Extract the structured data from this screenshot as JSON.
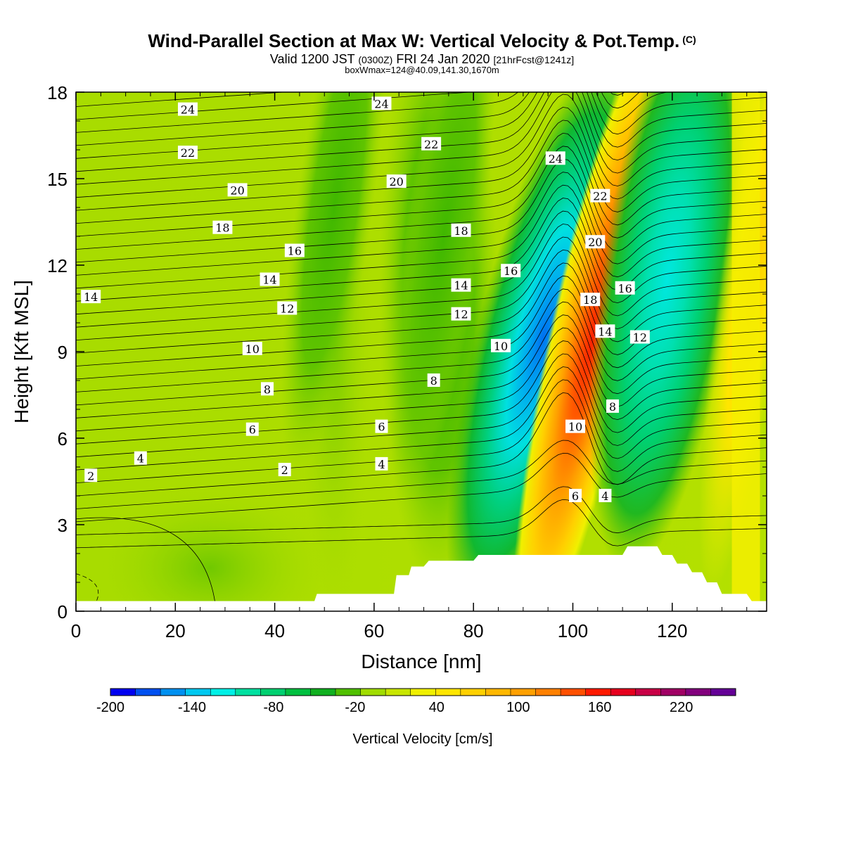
{
  "header": {
    "title": "Wind-Parallel Section at Max W: Vertical Velocity & Pot.Temp.",
    "copyright": "(C)",
    "valid_prefix": "Valid 1200 JST",
    "valid_utc": "(0300Z)",
    "valid_date": "FRI 24 Jan 2020",
    "valid_forecast": "[21hrFcst@1241z]",
    "box_info": "boxWmax=124@40.09,141.30,1670m"
  },
  "chart_data": {
    "type": "contour",
    "xlabel": "Distance [nm]",
    "ylabel": "Height [Kft MSL]",
    "xlim": [
      0,
      139
    ],
    "ylim": [
      0,
      18
    ],
    "x_ticks": [
      0,
      20,
      40,
      60,
      80,
      100,
      120
    ],
    "y_ticks": [
      0,
      3,
      6,
      9,
      12,
      15,
      18
    ],
    "colorbar": {
      "label": "Vertical Velocity [cm/s]",
      "min": -200,
      "max": 260,
      "step": 20,
      "tick_values": [
        -200,
        -140,
        -80,
        -20,
        40,
        100,
        160,
        220
      ],
      "colors": [
        "#0000f0",
        "#0050f0",
        "#0090f0",
        "#00c8f0",
        "#00f0e6",
        "#00e0a0",
        "#00d070",
        "#00c040",
        "#10b020",
        "#50c000",
        "#a0dc00",
        "#c8e600",
        "#f0f000",
        "#ffe600",
        "#ffd000",
        "#ffb800",
        "#ffa000",
        "#ff8000",
        "#ff5000",
        "#ff1a00",
        "#e6001e",
        "#c80046",
        "#a00064",
        "#82007d",
        "#640096"
      ]
    },
    "vertical_velocity_features": [
      {
        "kind": "downdraft",
        "x": 94,
        "height": 9.5,
        "value": -140
      },
      {
        "kind": "updraft",
        "x": 104,
        "height": 9.5,
        "value": 160
      },
      {
        "kind": "downdraft",
        "x": 119,
        "height": 11.5,
        "value": -80
      },
      {
        "kind": "updraft",
        "x": 137,
        "height": 12,
        "value": 60
      },
      {
        "kind": "downdraft",
        "x": 74,
        "height": 13,
        "value": -40
      },
      {
        "kind": "downdraft",
        "x": 52,
        "height": 14,
        "value": -20
      }
    ],
    "terrain": [
      [
        0,
        0.35
      ],
      [
        48,
        0.35
      ],
      [
        48.5,
        0.6
      ],
      [
        64,
        0.6
      ],
      [
        64.5,
        1.25
      ],
      [
        67,
        1.25
      ],
      [
        67.5,
        1.55
      ],
      [
        70,
        1.55
      ],
      [
        71,
        1.75
      ],
      [
        80,
        1.75
      ],
      [
        81,
        1.95
      ],
      [
        110,
        1.95
      ],
      [
        111,
        2.25
      ],
      [
        117,
        2.25
      ],
      [
        118,
        1.95
      ],
      [
        120,
        1.95
      ],
      [
        121,
        1.65
      ],
      [
        123,
        1.65
      ],
      [
        124,
        1.35
      ],
      [
        126,
        1.35
      ],
      [
        127,
        1.0
      ],
      [
        129,
        1.0
      ],
      [
        130,
        0.6
      ],
      [
        135,
        0.6
      ],
      [
        136,
        0.35
      ],
      [
        139,
        0.35
      ]
    ],
    "theta_contour_labels": [
      {
        "text": "24",
        "x": 22.5,
        "y": 17.4
      },
      {
        "text": "24",
        "x": 61.5,
        "y": 17.6
      },
      {
        "text": "24",
        "x": 96.5,
        "y": 15.7
      },
      {
        "text": "22",
        "x": 22.5,
        "y": 15.9
      },
      {
        "text": "22",
        "x": 71.5,
        "y": 16.2
      },
      {
        "text": "22",
        "x": 105.5,
        "y": 14.4
      },
      {
        "text": "20",
        "x": 32.5,
        "y": 14.6
      },
      {
        "text": "20",
        "x": 64.5,
        "y": 14.9
      },
      {
        "text": "20",
        "x": 104.5,
        "y": 12.8
      },
      {
        "text": "18",
        "x": 29.5,
        "y": 13.3
      },
      {
        "text": "18",
        "x": 77.5,
        "y": 13.2
      },
      {
        "text": "18",
        "x": 103.5,
        "y": 10.8
      },
      {
        "text": "16",
        "x": 44.0,
        "y": 12.5
      },
      {
        "text": "16",
        "x": 87.5,
        "y": 11.8
      },
      {
        "text": "16",
        "x": 110.5,
        "y": 11.2
      },
      {
        "text": "14",
        "x": 3.0,
        "y": 10.9
      },
      {
        "text": "14",
        "x": 39.0,
        "y": 11.5
      },
      {
        "text": "14",
        "x": 77.5,
        "y": 11.3
      },
      {
        "text": "14",
        "x": 106.5,
        "y": 9.7
      },
      {
        "text": "12",
        "x": 42.5,
        "y": 10.5
      },
      {
        "text": "12",
        "x": 77.5,
        "y": 10.3
      },
      {
        "text": "12",
        "x": 113.5,
        "y": 9.5
      },
      {
        "text": "10",
        "x": 35.5,
        "y": 9.1
      },
      {
        "text": "10",
        "x": 85.5,
        "y": 9.2
      },
      {
        "text": "10",
        "x": 100.5,
        "y": 6.4
      },
      {
        "text": "8",
        "x": 38.5,
        "y": 7.7
      },
      {
        "text": "8",
        "x": 72.0,
        "y": 8.0
      },
      {
        "text": "8",
        "x": 108.0,
        "y": 7.1
      },
      {
        "text": "6",
        "x": 35.5,
        "y": 6.3
      },
      {
        "text": "6",
        "x": 61.5,
        "y": 6.4
      },
      {
        "text": "6",
        "x": 100.5,
        "y": 4.0
      },
      {
        "text": "4",
        "x": 13.0,
        "y": 5.3
      },
      {
        "text": "4",
        "x": 61.5,
        "y": 5.1
      },
      {
        "text": "4",
        "x": 106.5,
        "y": 4.0
      },
      {
        "text": "2",
        "x": 3.0,
        "y": 4.7
      },
      {
        "text": "2",
        "x": 42.0,
        "y": 4.9
      }
    ]
  }
}
